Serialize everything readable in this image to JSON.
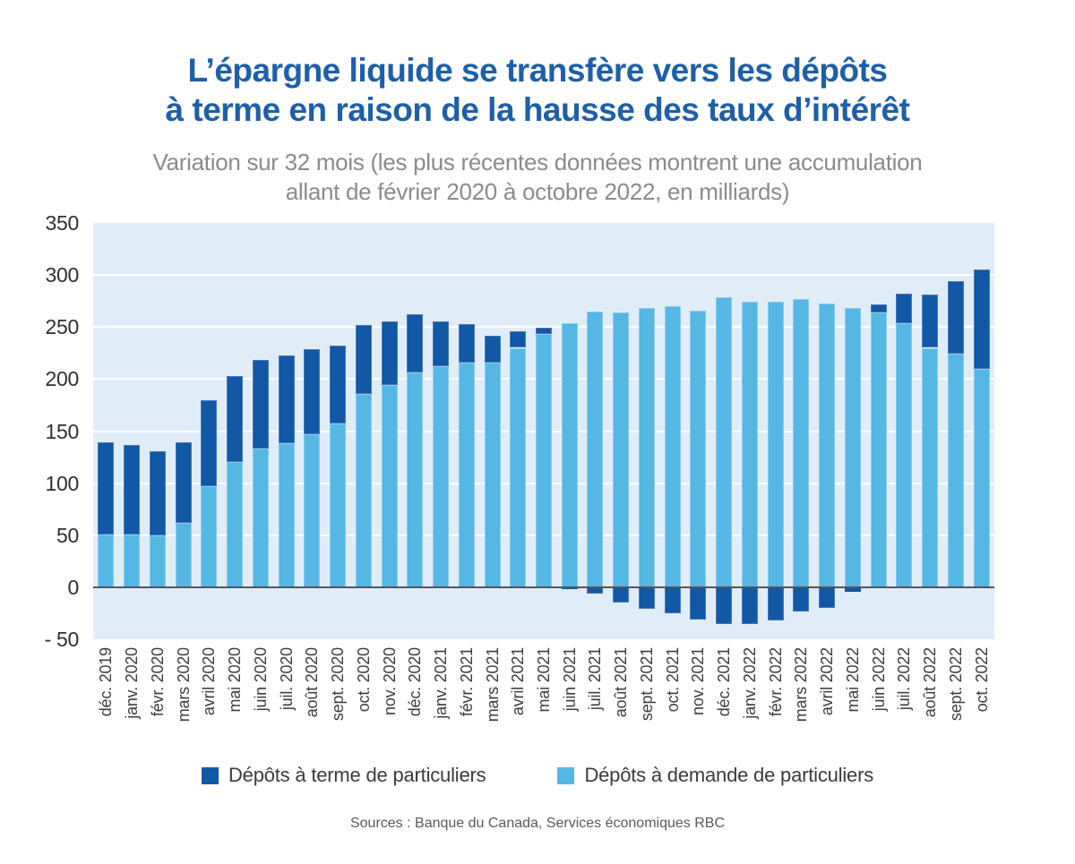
{
  "title": {
    "line1": "L’épargne liquide se transfère vers les dépôts",
    "line2": "à terme en raison de la hausse des taux d’intérêt"
  },
  "subtitle": {
    "line1": "Variation sur 32 mois (les plus récentes données montrent une accumulation",
    "line2": "allant de février 2020 à octobre 2022, en milliards)"
  },
  "source": "Sources : Banque du Canada, Services économiques RBC",
  "colors": {
    "title_blue": "#1d5fa9",
    "subtitle_gray": "#8b8b8b",
    "plot_background": "#e0ecf8",
    "gridline": "#ffffff",
    "zero_line": "#54565c",
    "term_bar": "#1158a6",
    "demand_bar": "#55b7e4"
  },
  "chart_data": {
    "type": "bar",
    "stacked": true,
    "title": "L’épargne liquide se transfère vers les dépôts à terme en raison de la hausse des taux d’intérêt",
    "subtitle": "Variation sur 32 mois (les plus récentes données montrent une accumulation allant de février 2020 à octobre 2022, en milliards)",
    "xlabel": "",
    "ylabel": "",
    "ylim": [
      -50,
      350
    ],
    "yticks": [
      350,
      300,
      250,
      200,
      150,
      100,
      50,
      0,
      -50
    ],
    "ytick_labels": [
      "350",
      "300",
      "250",
      "200",
      "150",
      "100",
      "50",
      "0",
      "- 50"
    ],
    "gridline_values": [
      300,
      250,
      200,
      150,
      100,
      50
    ],
    "grid": true,
    "legend_position": "bottom",
    "categories": [
      "déc. 2019",
      "janv. 2020",
      "févr. 2020",
      "mars 2020",
      "avril 2020",
      "mai 2020",
      "juin 2020",
      "juil. 2020",
      "août 2020",
      "sept. 2020",
      "oct. 2020",
      "nov. 2020",
      "déc. 2020",
      "janv. 2021",
      "févr. 2021",
      "mars 2021",
      "avril 2021",
      "mai 2021",
      "juin 2021",
      "juil. 2021",
      "août 2021",
      "sept. 2021",
      "oct. 2021",
      "nov. 2021",
      "déc. 2021",
      "janv. 2022",
      "févr. 2022",
      "mars 2022",
      "avril 2022",
      "mai 2022",
      "juin 2022",
      "juil. 2022",
      "août 2022",
      "sept. 2022",
      "oct. 2022"
    ],
    "series": [
      {
        "name": "Dépôts à terme de particuliers",
        "color": "#1158a6",
        "values": [
          88,
          86,
          81,
          77,
          83,
          83,
          85,
          85,
          82,
          75,
          66,
          61,
          56,
          43,
          37,
          26,
          16,
          6,
          -2,
          -6,
          -15,
          -21,
          -25,
          -31,
          -35,
          -35,
          -32,
          -23,
          -20,
          -4,
          8,
          28,
          51,
          70,
          95
        ]
      },
      {
        "name": "Dépôts à demande de particuliers",
        "color": "#55b7e4",
        "values": [
          51,
          51,
          50,
          62,
          97,
          120,
          133,
          138,
          147,
          157,
          186,
          194,
          206,
          212,
          216,
          216,
          230,
          243,
          254,
          265,
          264,
          268,
          270,
          266,
          279,
          274,
          274,
          277,
          273,
          268,
          264,
          254,
          230,
          224,
          210
        ]
      }
    ]
  }
}
